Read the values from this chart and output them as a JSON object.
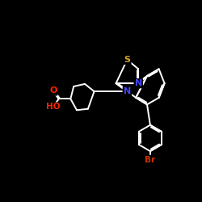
{
  "background_color": "#000000",
  "bond_color": "#ffffff",
  "atom_colors": {
    "S": "#DAA520",
    "N": "#4444FF",
    "O": "#FF2200",
    "Br": "#CC3300",
    "HO": "#FF2200"
  },
  "figsize": [
    2.5,
    2.5
  ],
  "dpi": 100
}
